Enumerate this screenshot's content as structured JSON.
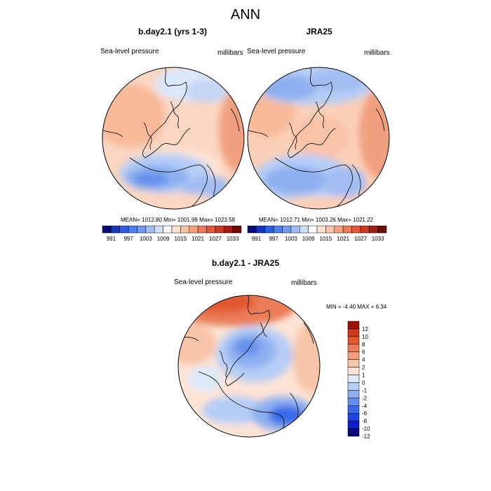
{
  "main_title": "ANN",
  "panels": [
    {
      "title": "b.day2.1 (yrs 1-3)",
      "left_label": "Sea-level pressure",
      "right_label": "millibars",
      "stats": "MEAN= 1012.80  Min= 1001.98  Max= 1023.58"
    },
    {
      "title": "JRA25",
      "left_label": "Sea-level pressure",
      "right_label": "millibars",
      "stats": "MEAN= 1012.71  Min= 1003.26  Max= 1021.22"
    },
    {
      "title": "b.day2.1 - JRA25",
      "left_label": "Sea-level pressure",
      "right_label": "millibars",
      "stats": "MIN =  -4.40 MAX =   6.34"
    }
  ],
  "colors": {
    "abs_scale": [
      "#0a0a7a",
      "#1537c0",
      "#2a5fe0",
      "#4d80ee",
      "#7399ee",
      "#a3bdf2",
      "#cfe0f8",
      "#ffffff",
      "#fde2d2",
      "#f9c3a8",
      "#f4a180",
      "#ef7c59",
      "#e35838",
      "#c83a22",
      "#a21e12",
      "#6e0a06"
    ],
    "diff_scale": [
      "#0a0a7a",
      "#0c1ec8",
      "#1a45e0",
      "#3a6ae8",
      "#6690ec",
      "#8eb0f0",
      "#b6cdf6",
      "#deebfb",
      "#fde4d6",
      "#f8c4a8",
      "#f1a07f",
      "#ea7c58",
      "#e2582f",
      "#ce3a1a",
      "#9e0f08"
    ]
  },
  "chart_data": [
    {
      "type": "heatmap",
      "title": "b.day2.1 (yrs 1-3)",
      "variable": "Sea-level pressure",
      "units": "millibars",
      "projection": "north polar stereographic",
      "colorbar_ticks": [
        "991",
        "997",
        "1003",
        "1009",
        "1015",
        "1021",
        "1027",
        "1033"
      ],
      "colorbar_levels": [
        988,
        991,
        994,
        997,
        1000,
        1003,
        1006,
        1009,
        1012,
        1015,
        1018,
        1021,
        1024,
        1027,
        1030,
        1033
      ],
      "mean": 1012.8,
      "min": 1001.98,
      "max": 1023.58
    },
    {
      "type": "heatmap",
      "title": "JRA25",
      "variable": "Sea-level pressure",
      "units": "millibars",
      "projection": "north polar stereographic",
      "colorbar_ticks": [
        "991",
        "997",
        "1003",
        "1009",
        "1015",
        "1021",
        "1027",
        "1033"
      ],
      "colorbar_levels": [
        988,
        991,
        994,
        997,
        1000,
        1003,
        1006,
        1009,
        1012,
        1015,
        1018,
        1021,
        1024,
        1027,
        1030,
        1033
      ],
      "mean": 1012.71,
      "min": 1003.26,
      "max": 1021.22
    },
    {
      "type": "heatmap",
      "title": "b.day2.1 - JRA25",
      "variable": "Sea-level pressure",
      "units": "millibars",
      "projection": "north polar stereographic",
      "colorbar_ticks": [
        "12",
        "10",
        "8",
        "6",
        "4",
        "2",
        "1",
        "0",
        "-1",
        "-2",
        "-4",
        "-6",
        "-8",
        "-10",
        "-12"
      ],
      "min": -4.4,
      "max": 6.34
    }
  ]
}
